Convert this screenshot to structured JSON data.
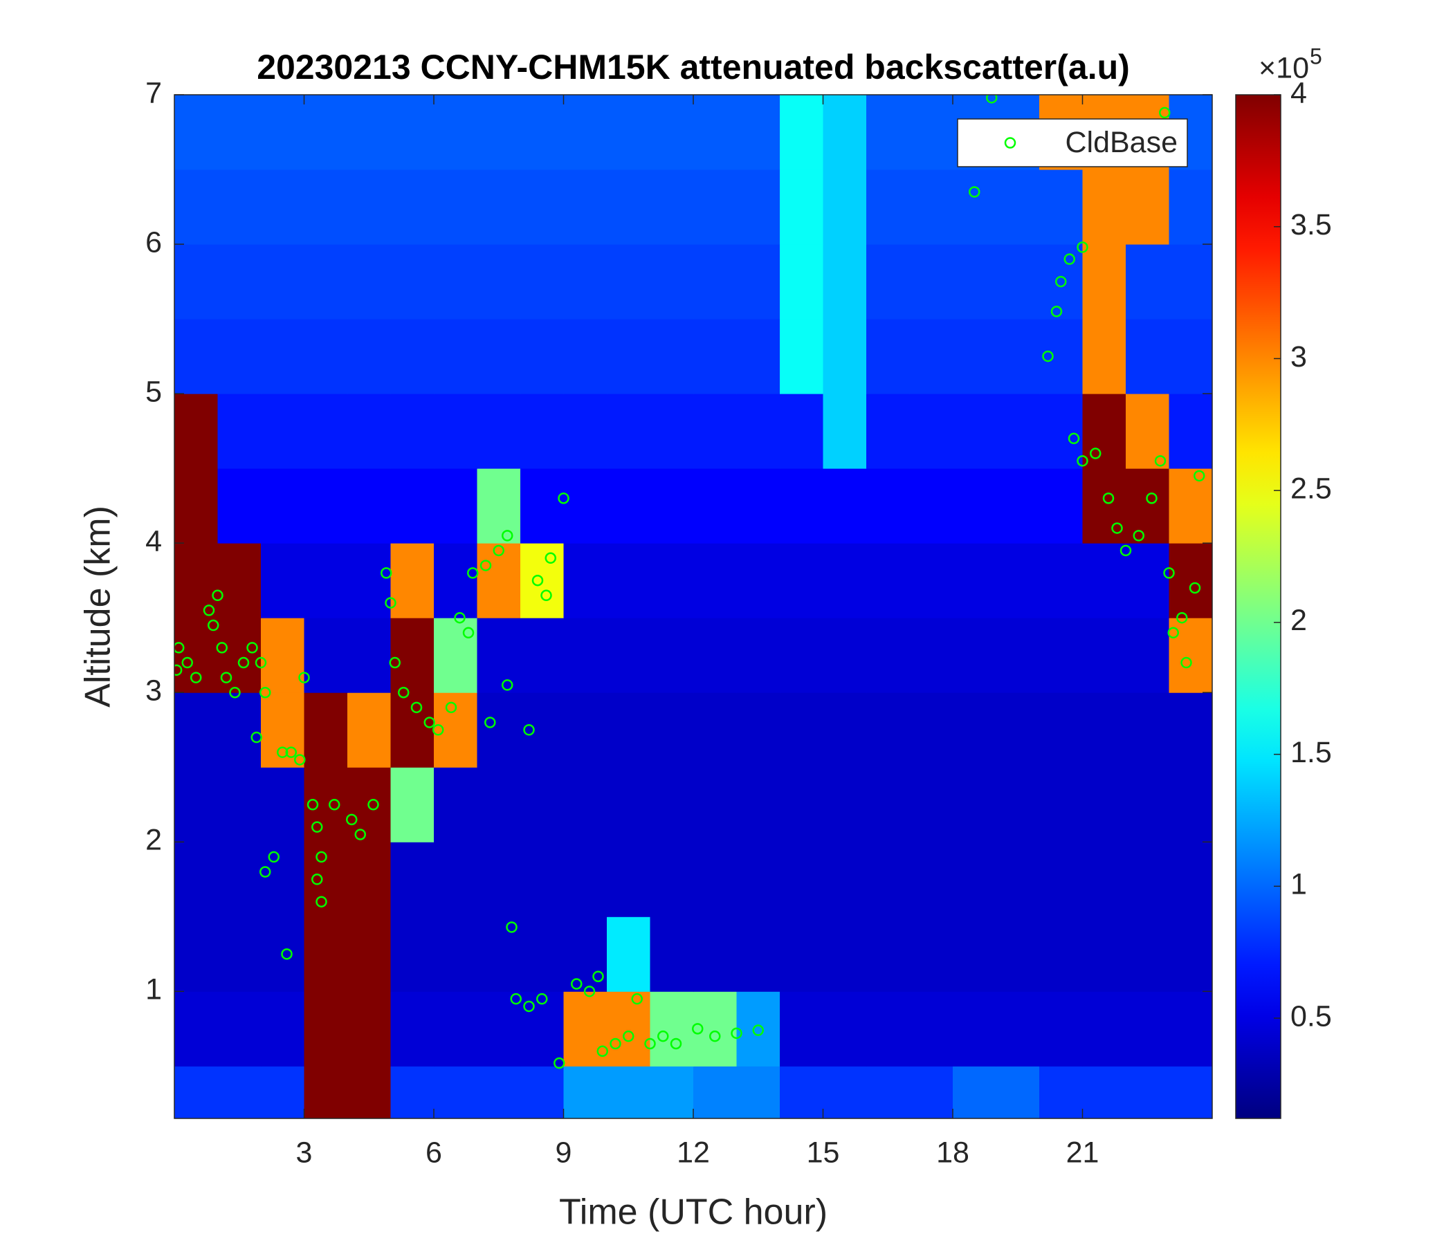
{
  "chart_data": {
    "type": "heatmap",
    "title": "20230213 CCNY-CHM15K attenuated backscatter(a.u)",
    "xlabel": "Time (UTC hour)",
    "ylabel": "Altitude (km)",
    "xlim": [
      0,
      24
    ],
    "ylim": [
      0.15,
      7
    ],
    "xticks": [
      3,
      6,
      9,
      12,
      15,
      18,
      21
    ],
    "yticks": [
      1,
      2,
      3,
      4,
      5,
      6,
      7
    ],
    "x": [
      0.5,
      1.5,
      2.5,
      3.5,
      4.5,
      5.5,
      6.5,
      7.5,
      8.5,
      9.5,
      10.5,
      11.5,
      12.5,
      13.5,
      14.5,
      15.5,
      16.5,
      17.5,
      18.5,
      19.5,
      20.5,
      21.5,
      22.5,
      23.5
    ],
    "y": [
      0.25,
      0.75,
      1.25,
      1.75,
      2.25,
      2.75,
      3.25,
      3.75,
      4.25,
      4.75,
      5.25,
      5.75,
      6.25,
      6.75
    ],
    "z": [
      [
        0.8,
        0.8,
        0.8,
        4,
        4,
        0.8,
        0.8,
        0.8,
        0.8,
        1.2,
        1.2,
        1.2,
        1.1,
        1.1,
        0.8,
        0.8,
        0.8,
        0.8,
        1,
        1,
        0.8,
        0.8,
        0.8,
        0.8
      ],
      [
        0.45,
        0.45,
        0.45,
        4,
        4,
        0.45,
        0.45,
        0.45,
        0.45,
        3,
        3,
        2,
        2,
        1.2,
        0.45,
        0.45,
        0.45,
        0.45,
        0.45,
        0.45,
        0.45,
        0.45,
        0.45,
        0.45
      ],
      [
        0.4,
        0.4,
        0.4,
        4,
        4,
        0.4,
        0.4,
        0.4,
        0.4,
        0.4,
        1.5,
        0.4,
        0.4,
        0.4,
        0.4,
        0.4,
        0.4,
        0.4,
        0.4,
        0.4,
        0.4,
        0.4,
        0.4,
        0.4
      ],
      [
        0.4,
        0.4,
        0.4,
        4,
        4,
        0.4,
        0.4,
        0.4,
        0.4,
        0.4,
        0.4,
        0.4,
        0.4,
        0.4,
        0.4,
        0.4,
        0.4,
        0.4,
        0.4,
        0.4,
        0.4,
        0.4,
        0.4,
        0.4
      ],
      [
        0.4,
        0.4,
        0.4,
        4,
        4,
        2,
        0.4,
        0.4,
        0.4,
        0.4,
        0.4,
        0.4,
        0.4,
        0.4,
        0.4,
        0.4,
        0.4,
        0.4,
        0.4,
        0.4,
        0.4,
        0.4,
        0.4,
        0.4
      ],
      [
        0.4,
        0.4,
        3,
        4,
        3,
        4,
        3,
        0.4,
        0.4,
        0.4,
        0.4,
        0.4,
        0.4,
        0.4,
        0.4,
        0.4,
        0.4,
        0.4,
        0.4,
        0.4,
        0.4,
        0.4,
        0.4,
        0.4
      ],
      [
        4,
        4,
        3,
        0.45,
        0.45,
        4,
        2,
        0.45,
        0.45,
        0.45,
        0.45,
        0.45,
        0.45,
        0.45,
        0.45,
        0.45,
        0.45,
        0.45,
        0.45,
        0.45,
        0.45,
        0.45,
        0.45,
        3
      ],
      [
        4,
        4,
        0.5,
        0.5,
        0.5,
        3,
        0.5,
        3,
        2.5,
        0.5,
        0.5,
        0.5,
        0.5,
        0.5,
        0.5,
        0.5,
        0.5,
        0.5,
        0.5,
        0.5,
        0.5,
        0.5,
        0.5,
        4
      ],
      [
        4,
        0.6,
        0.6,
        0.6,
        0.6,
        0.6,
        0.6,
        2,
        0.6,
        0.6,
        0.6,
        0.6,
        0.6,
        0.6,
        0.6,
        0.6,
        0.6,
        0.6,
        0.6,
        0.6,
        0.6,
        4,
        4,
        3
      ],
      [
        4,
        0.7,
        0.7,
        0.7,
        0.7,
        0.7,
        0.7,
        0.7,
        0.7,
        0.7,
        0.7,
        0.7,
        0.7,
        0.7,
        0.7,
        1.4,
        0.7,
        0.7,
        0.7,
        0.7,
        0.7,
        4,
        3,
        0.7
      ],
      [
        0.8,
        0.8,
        0.8,
        0.8,
        0.8,
        0.8,
        0.8,
        0.8,
        0.8,
        0.8,
        0.8,
        0.8,
        0.8,
        0.8,
        1.6,
        1.4,
        0.8,
        0.8,
        0.8,
        0.8,
        0.8,
        3,
        0.8,
        0.8
      ],
      [
        0.85,
        0.85,
        0.85,
        0.85,
        0.85,
        0.85,
        0.85,
        0.85,
        0.85,
        0.85,
        0.85,
        0.85,
        0.85,
        0.85,
        1.6,
        1.4,
        0.85,
        0.85,
        0.85,
        0.85,
        0.85,
        3,
        0.85,
        0.85
      ],
      [
        0.9,
        0.9,
        0.9,
        0.9,
        0.9,
        0.9,
        0.9,
        0.9,
        0.9,
        0.9,
        0.9,
        0.9,
        0.9,
        0.9,
        1.6,
        1.4,
        0.9,
        0.9,
        0.9,
        0.9,
        0.9,
        3,
        3,
        0.9
      ],
      [
        0.95,
        0.95,
        0.95,
        0.95,
        0.95,
        0.95,
        0.95,
        0.95,
        0.95,
        0.95,
        0.95,
        0.95,
        0.95,
        0.95,
        1.6,
        1.4,
        0.95,
        0.95,
        0.95,
        0.95,
        3,
        3,
        3,
        0.95
      ]
    ],
    "colormap": "jet",
    "clim": [
      0.12,
      4
    ],
    "colorbar_ticks": [
      0.5,
      1,
      1.5,
      2,
      2.5,
      3,
      3.5,
      4
    ],
    "colorbar_multiplier": "×10",
    "colorbar_exponent": "5",
    "legend": "northeast",
    "series": [
      {
        "name": "CldBase",
        "type": "scatter",
        "color": "#00ff00",
        "x": [
          0.05,
          0.1,
          0.3,
          0.5,
          0.8,
          0.9,
          1.0,
          1.1,
          1.2,
          1.4,
          1.6,
          1.8,
          2.0,
          2.1,
          1.9,
          2.1,
          2.3,
          2.5,
          2.7,
          2.6,
          2.9,
          3.0,
          3.2,
          3.3,
          3.4,
          3.4,
          3.3,
          3.7,
          4.1,
          4.3,
          4.6,
          4.9,
          5.0,
          5.1,
          5.3,
          5.6,
          5.9,
          6.1,
          6.4,
          6.6,
          6.8,
          6.9,
          7.2,
          7.5,
          7.7,
          7.3,
          7.7,
          7.8,
          8.2,
          7.9,
          8.2,
          8.5,
          8.4,
          8.7,
          8.6,
          9.0,
          8.9,
          9.3,
          9.6,
          9.8,
          9.9,
          10.2,
          10.5,
          10.7,
          11.0,
          11.3,
          11.6,
          12.1,
          12.5,
          13.0,
          13.5,
          18.5,
          18.9,
          20.2,
          20.4,
          20.5,
          20.7,
          21.0,
          20.8,
          21.0,
          21.3,
          21.6,
          21.8,
          22.0,
          22.3,
          22.6,
          22.8,
          23.0,
          23.1,
          23.3,
          23.4,
          23.6,
          23.7,
          22.9
        ],
        "y": [
          3.15,
          3.3,
          3.2,
          3.1,
          3.55,
          3.45,
          3.65,
          3.3,
          3.1,
          3.0,
          3.2,
          3.3,
          3.2,
          3.0,
          2.7,
          1.8,
          1.9,
          2.6,
          2.6,
          1.25,
          2.55,
          3.1,
          2.25,
          2.1,
          1.9,
          1.6,
          1.75,
          2.25,
          2.15,
          2.05,
          2.25,
          3.8,
          3.6,
          3.2,
          3.0,
          2.9,
          2.8,
          2.75,
          2.9,
          3.5,
          3.4,
          3.8,
          3.85,
          3.95,
          4.05,
          2.8,
          3.05,
          1.43,
          2.75,
          0.95,
          0.9,
          0.95,
          3.75,
          3.9,
          3.65,
          4.3,
          0.52,
          1.05,
          1.0,
          1.1,
          0.6,
          0.65,
          0.7,
          0.95,
          0.65,
          0.7,
          0.65,
          0.75,
          0.7,
          0.72,
          0.74,
          6.35,
          6.98,
          5.25,
          5.55,
          5.75,
          5.9,
          5.98,
          4.7,
          4.55,
          4.6,
          4.3,
          4.1,
          3.95,
          4.05,
          4.3,
          4.55,
          3.8,
          3.4,
          3.5,
          3.2,
          3.7,
          4.45,
          6.88
        ]
      }
    ]
  }
}
